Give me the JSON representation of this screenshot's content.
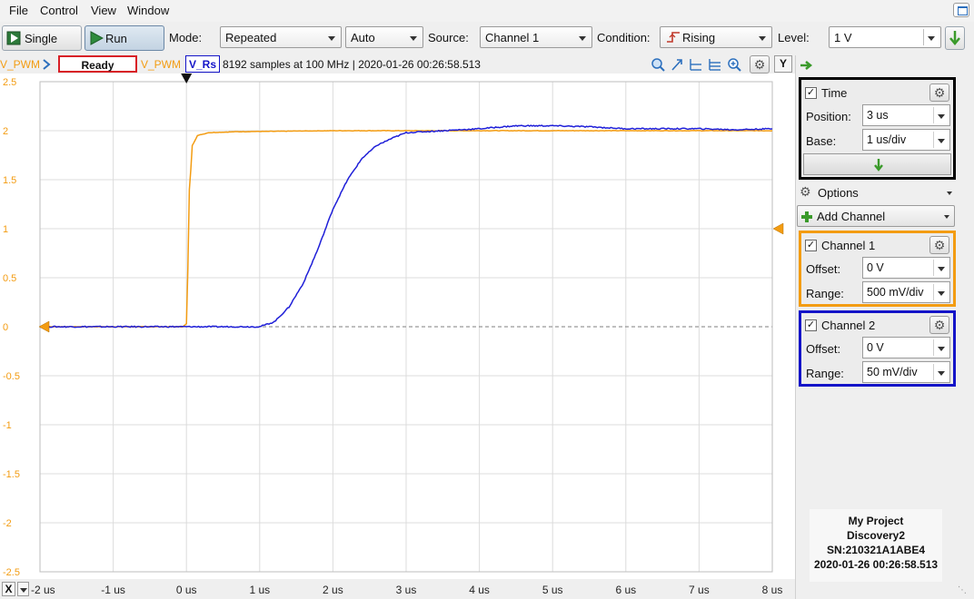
{
  "menu": [
    "File",
    "Control",
    "View",
    "Window"
  ],
  "toolbar": {
    "single_label": "Single",
    "run_label": "Run",
    "mode_label": "Mode:",
    "mode_value": "Repeated",
    "auto_value": "Auto",
    "source_label": "Source:",
    "source_value": "Channel 1",
    "condition_label": "Condition:",
    "condition_value": "Rising",
    "level_label": "Level:",
    "level_value": "1 V"
  },
  "status": {
    "left_channel": "V_PWM",
    "state": "Ready",
    "ch1_name": "V_PWM",
    "ch2_name": "V_Rs",
    "acq_info": "8192 samples at 100 MHz | 2020-01-26 00:26:58.513",
    "y_button": "Y",
    "x_button": "X"
  },
  "chart_data": {
    "type": "line",
    "x_ticks": [
      "-2 us",
      "-1 us",
      "0 us",
      "1 us",
      "2 us",
      "3 us",
      "4 us",
      "5 us",
      "6 us",
      "7 us",
      "8 us"
    ],
    "y_ticks": [
      "2.5",
      "2",
      "1.5",
      "1",
      "0.5",
      "0",
      "-0.5",
      "-1",
      "-1.5",
      "-2",
      "-2.5"
    ],
    "xlim": [
      -2,
      8
    ],
    "ylim": [
      -2.5,
      2.5
    ],
    "x_unit": "us",
    "grid": true,
    "series": [
      {
        "name": "V_PWM",
        "color": "#f39c12",
        "points": [
          [
            -2,
            0.0
          ],
          [
            -0.05,
            0.0
          ],
          [
            0.0,
            0.03
          ],
          [
            0.02,
            0.6
          ],
          [
            0.04,
            1.4
          ],
          [
            0.06,
            1.6
          ],
          [
            0.08,
            1.85
          ],
          [
            0.15,
            1.95
          ],
          [
            0.3,
            1.98
          ],
          [
            0.7,
            1.99
          ],
          [
            2.0,
            2.0
          ],
          [
            8,
            2.0
          ]
        ]
      },
      {
        "name": "V_Rs",
        "color": "#1f1fd8",
        "points": [
          [
            -2,
            0.0
          ],
          [
            0.0,
            0.0
          ],
          [
            1.0,
            0.0
          ],
          [
            1.2,
            0.05
          ],
          [
            1.4,
            0.2
          ],
          [
            1.6,
            0.45
          ],
          [
            1.8,
            0.8
          ],
          [
            2.0,
            1.2
          ],
          [
            2.2,
            1.5
          ],
          [
            2.4,
            1.72
          ],
          [
            2.6,
            1.85
          ],
          [
            2.8,
            1.92
          ],
          [
            3.0,
            1.98
          ],
          [
            3.5,
            2.0
          ],
          [
            4.0,
            2.02
          ],
          [
            4.5,
            2.05
          ],
          [
            5.0,
            2.05
          ],
          [
            5.5,
            2.04
          ],
          [
            6.0,
            2.02
          ],
          [
            6.5,
            2.02
          ],
          [
            7.0,
            2.02
          ],
          [
            7.5,
            2.01
          ],
          [
            8.0,
            2.02
          ]
        ]
      }
    ]
  },
  "panel": {
    "time": {
      "title": "Time",
      "position_label": "Position:",
      "position_value": "3 us",
      "base_label": "Base:",
      "base_value": "1 us/div"
    },
    "options_label": "Options",
    "add_channel_label": "Add Channel",
    "ch1": {
      "title": "Channel 1",
      "offset_label": "Offset:",
      "offset_value": "0 V",
      "range_label": "Range:",
      "range_value": "500 mV/div",
      "color": "#f39c12"
    },
    "ch2": {
      "title": "Channel 2",
      "offset_label": "Offset:",
      "offset_value": "0 V",
      "range_label": "Range:",
      "range_value": "50 mV/div",
      "color": "#1414c8"
    },
    "info": {
      "project": "My Project",
      "device": "Discovery2",
      "serial": "SN:210321A1ABE4",
      "timestamp": "2020-01-26 00:26:58.513"
    }
  }
}
